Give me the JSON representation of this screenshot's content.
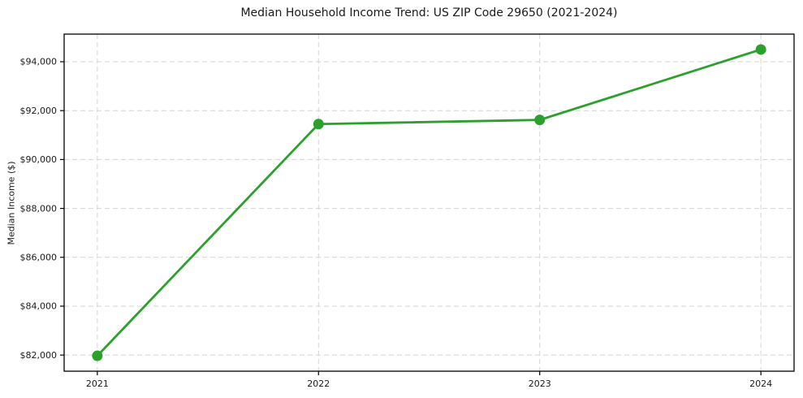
{
  "chart_data": {
    "type": "line",
    "title": "Median Household Income Trend: US ZIP Code 29650 (2021-2024)",
    "xlabel": "",
    "ylabel": "Median Income ($)",
    "x": [
      2021,
      2022,
      2023,
      2024
    ],
    "series": [
      {
        "name": "Median Household Income",
        "values": [
          81970,
          91450,
          91620,
          94500
        ]
      }
    ],
    "xtick_labels": [
      "2021",
      "2022",
      "2023",
      "2024"
    ],
    "yticks": [
      82000,
      84000,
      86000,
      88000,
      90000,
      92000,
      94000
    ],
    "ytick_labels": [
      "$82,000",
      "$84,000",
      "$86,000",
      "$88,000",
      "$90,000",
      "$92,000",
      "$94,000"
    ],
    "xlim": [
      2020.85,
      2024.15
    ],
    "ylim": [
      81340,
      95130
    ],
    "grid": true,
    "legend": "none",
    "colors": {
      "line": "#2ca02c",
      "marker": "#2ca02c",
      "grid": "#d4d4d4",
      "spine": "#000000",
      "tick": "#000000",
      "text": "#1a1a1a",
      "background": "#ffffff"
    }
  }
}
